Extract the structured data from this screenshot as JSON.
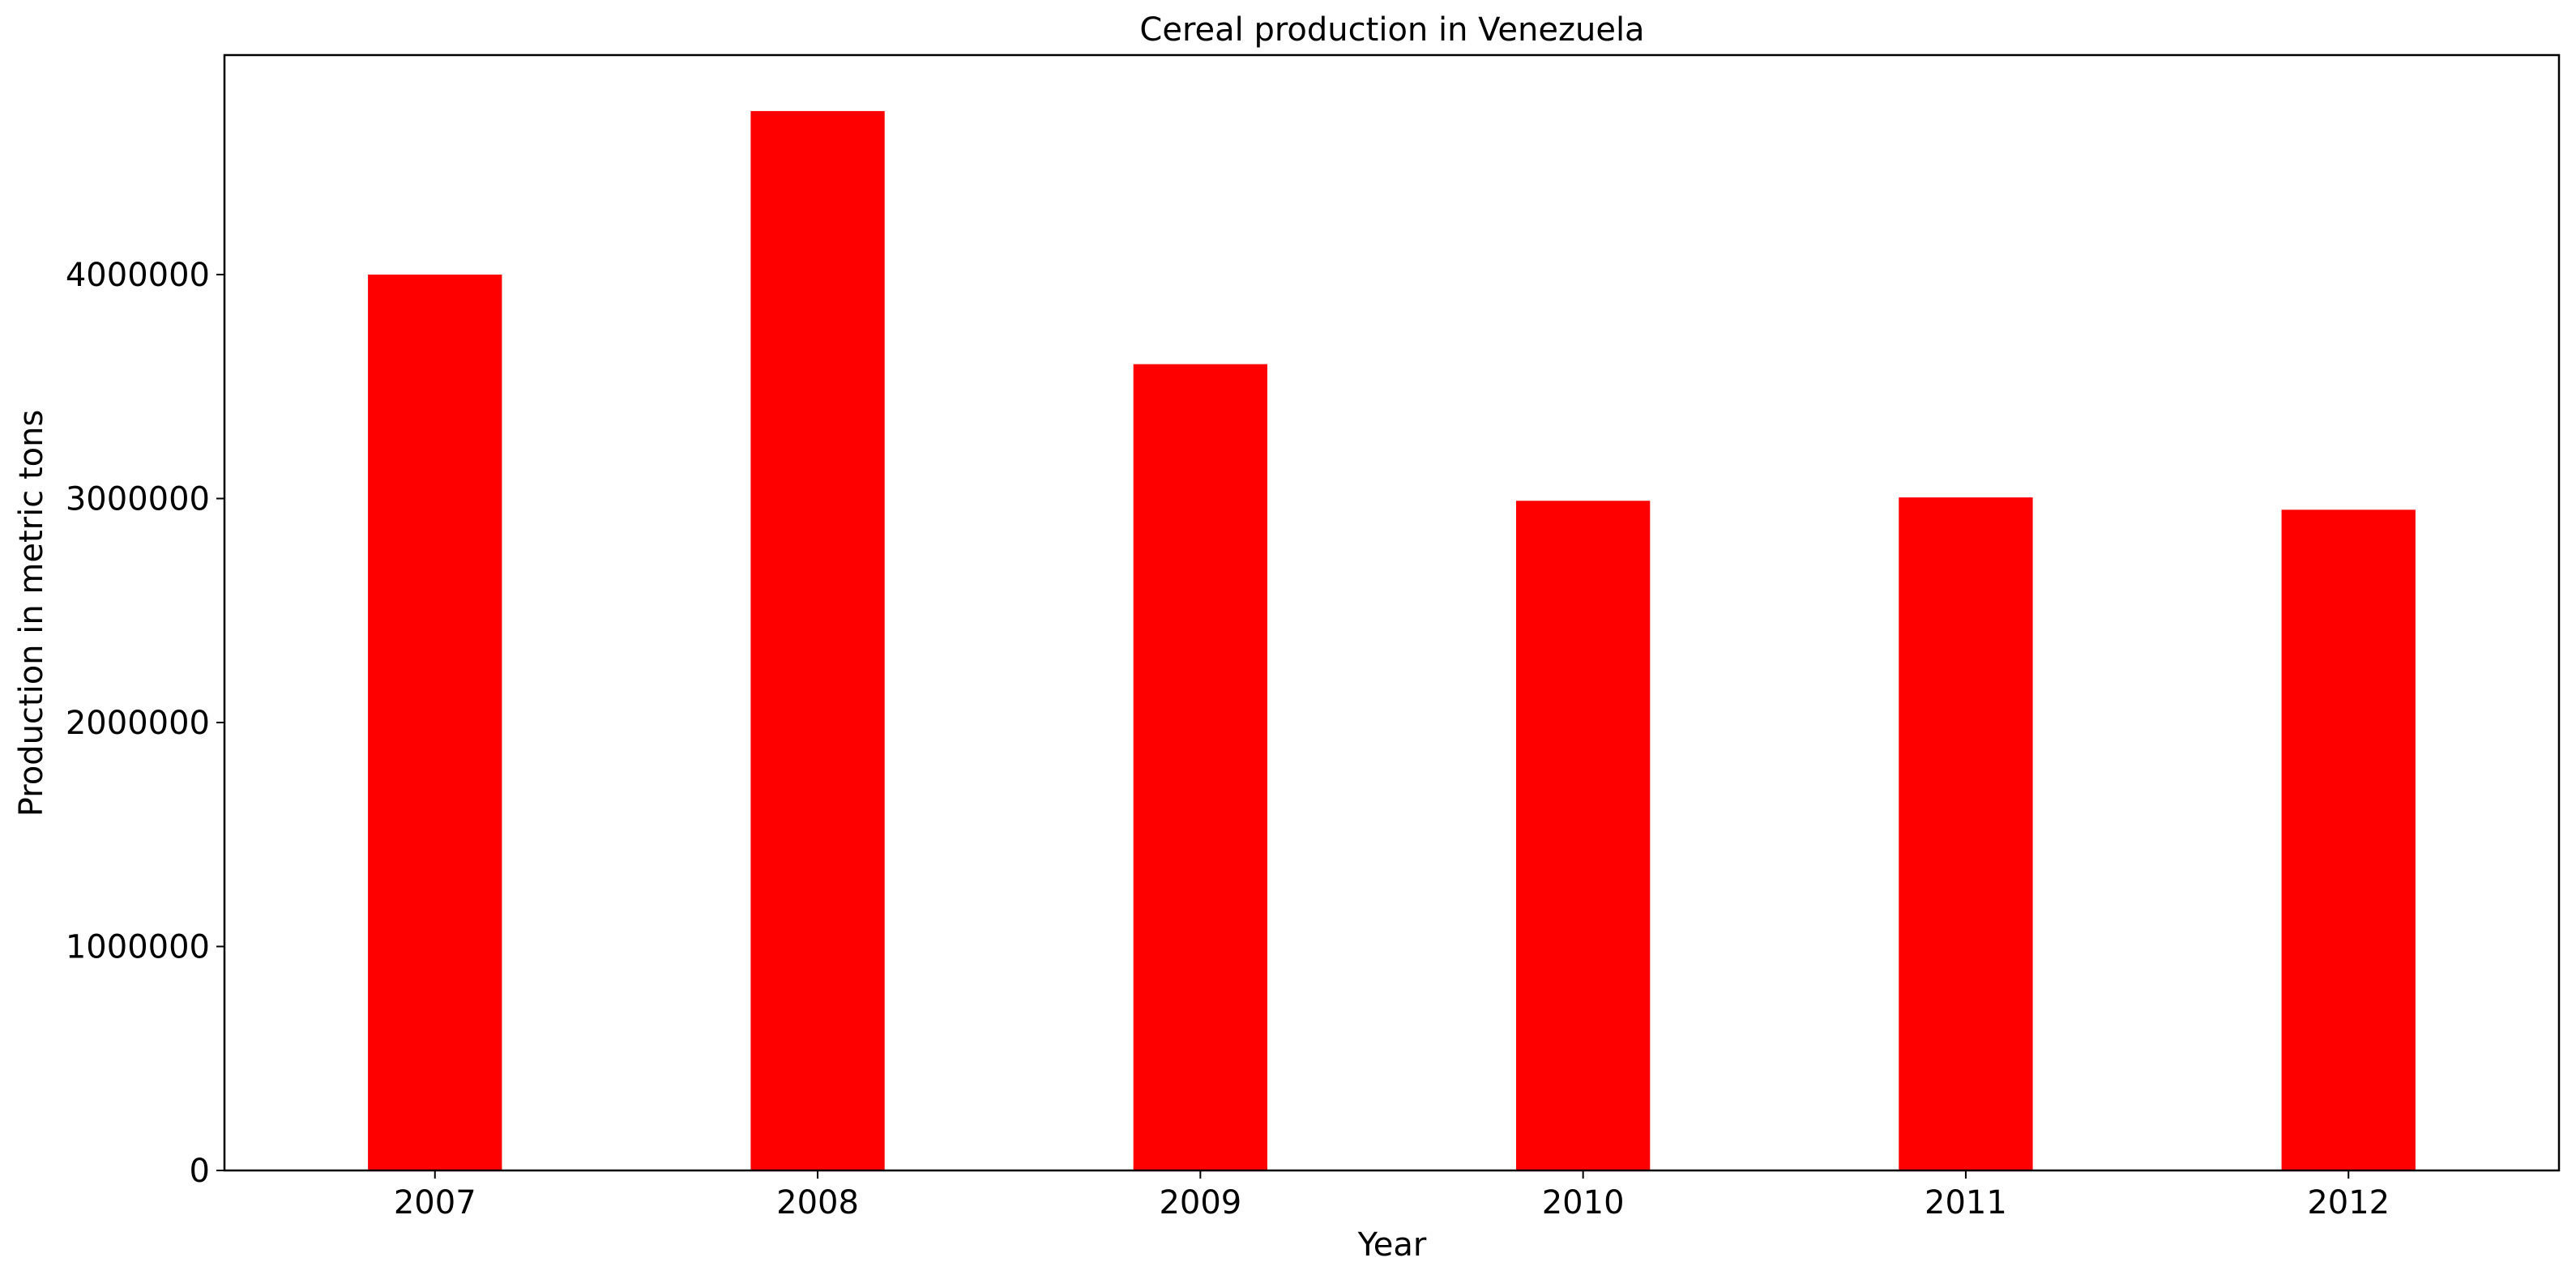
{
  "chart_data": {
    "type": "bar",
    "title": "Cereal production in Venezuela",
    "xlabel": "Year",
    "ylabel": "Production in metric tons",
    "categories": [
      "2007",
      "2008",
      "2009",
      "2010",
      "2011",
      "2012"
    ],
    "values": [
      4000000,
      4730000,
      3600000,
      2990000,
      3005000,
      2950000
    ],
    "ylim": [
      0,
      4980000
    ],
    "yticks": [
      0,
      1000000,
      2000000,
      3000000,
      4000000
    ],
    "ytick_labels": [
      "0",
      "1000000",
      "2000000",
      "3000000",
      "4000000"
    ],
    "bar_color": "#ff0000",
    "grid": false,
    "legend": "none"
  }
}
